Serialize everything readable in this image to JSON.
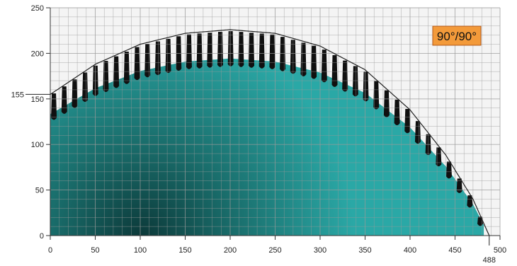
{
  "chart_data": {
    "type": "area",
    "title": "",
    "xlabel": "",
    "ylabel": "",
    "xlim": [
      0,
      500
    ],
    "ylim": [
      0,
      250
    ],
    "x_ticks": [
      0,
      50,
      100,
      150,
      200,
      250,
      300,
      350,
      400,
      450,
      500
    ],
    "y_ticks": [
      0,
      50,
      100,
      150,
      200,
      250
    ],
    "grid": true,
    "minor_grid_step": 10,
    "marked_values": {
      "y_intercept": 155,
      "x_intercept": 488
    },
    "marked_labels": {
      "y": "155",
      "x": "488"
    },
    "badge": "90°/90°",
    "arc_points": {
      "x": [
        0,
        50,
        100,
        150,
        200,
        250,
        300,
        350,
        400,
        440,
        470,
        488
      ],
      "y": [
        155,
        188,
        210,
        222,
        226,
        222,
        208,
        182,
        138,
        88,
        40,
        0
      ]
    },
    "teeth_count": 42,
    "colors": {
      "disc_edge": "#2aa8a6",
      "disc_center": "#0c3a3a",
      "badge_fill": "#f39a3a",
      "badge_border": "#b0581a",
      "grid": "#9a9a9a",
      "arc": "#222222"
    }
  }
}
